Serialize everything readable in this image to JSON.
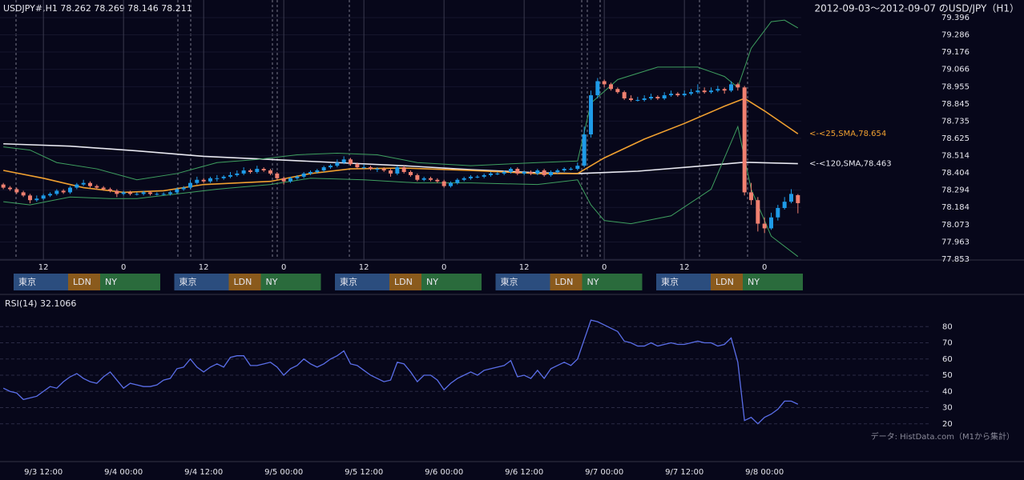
{
  "chart_data": [
    {
      "type": "candlestick",
      "title": "USDJPY#,H1 78.262 78.269 78.146 78.211",
      "subtitle": "2012-09-03～2012-09-07 のUSD/JPY（H1）",
      "up_color": "#1e9be8",
      "down_color": "#f08070",
      "ylim": [
        77.853,
        79.396
      ],
      "yticks": [
        79.396,
        79.286,
        79.176,
        79.066,
        78.955,
        78.845,
        78.735,
        78.625,
        78.514,
        78.404,
        78.294,
        78.184,
        78.073,
        77.963,
        77.853
      ],
      "xlim": [
        -0.5,
        119.5
      ],
      "xticks": [
        {
          "value": 6,
          "label": "12"
        },
        {
          "value": 18,
          "label": "0"
        },
        {
          "value": 30,
          "label": "12"
        },
        {
          "value": 42,
          "label": "0"
        },
        {
          "value": 54,
          "label": "12"
        },
        {
          "value": 66,
          "label": "0"
        },
        {
          "value": 78,
          "label": "12"
        },
        {
          "value": 90,
          "label": "0"
        },
        {
          "value": 102,
          "label": "12"
        },
        {
          "value": 114,
          "label": "0"
        }
      ],
      "sessions": {
        "labels": [
          "東京",
          "LDN",
          "NY"
        ],
        "colors": [
          "#2b4d7e",
          "#8a5a1c",
          "#2a6b3c"
        ]
      },
      "ohlc": [
        [
          78.33,
          78.34,
          78.3,
          78.31
        ],
        [
          78.31,
          78.32,
          78.29,
          78.3
        ],
        [
          78.3,
          78.31,
          78.27,
          78.28
        ],
        [
          78.28,
          78.29,
          78.25,
          78.26
        ],
        [
          78.26,
          78.27,
          78.21,
          78.23
        ],
        [
          78.23,
          78.26,
          78.22,
          78.24
        ],
        [
          78.24,
          78.27,
          78.23,
          78.26
        ],
        [
          78.26,
          78.28,
          78.25,
          78.27
        ],
        [
          78.27,
          78.3,
          78.26,
          78.29
        ],
        [
          78.29,
          78.3,
          78.27,
          78.28
        ],
        [
          78.28,
          78.32,
          78.27,
          78.31
        ],
        [
          78.31,
          78.34,
          78.3,
          78.33
        ],
        [
          78.33,
          78.36,
          78.32,
          78.34
        ],
        [
          78.34,
          78.35,
          78.31,
          78.32
        ],
        [
          78.32,
          78.33,
          78.3,
          78.31
        ],
        [
          78.31,
          78.32,
          78.29,
          78.3
        ],
        [
          78.3,
          78.31,
          78.28,
          78.29
        ],
        [
          78.29,
          78.3,
          78.25,
          78.27
        ],
        [
          78.27,
          78.29,
          78.26,
          78.28
        ],
        [
          78.28,
          78.29,
          78.26,
          78.27
        ],
        [
          78.27,
          78.28,
          78.26,
          78.27
        ],
        [
          78.27,
          78.29,
          78.26,
          78.28
        ],
        [
          78.28,
          78.29,
          78.26,
          78.27
        ],
        [
          78.27,
          78.28,
          78.26,
          78.27
        ],
        [
          78.27,
          78.28,
          78.26,
          78.27
        ],
        [
          78.27,
          78.29,
          78.26,
          78.28
        ],
        [
          78.28,
          78.31,
          78.27,
          78.3
        ],
        [
          78.3,
          78.32,
          78.29,
          78.31
        ],
        [
          78.31,
          78.36,
          78.3,
          78.34
        ],
        [
          78.34,
          78.38,
          78.33,
          78.36
        ],
        [
          78.36,
          78.37,
          78.34,
          78.35
        ],
        [
          78.35,
          78.38,
          78.34,
          78.37
        ],
        [
          78.37,
          78.39,
          78.35,
          78.37
        ],
        [
          78.37,
          78.39,
          78.36,
          78.38
        ],
        [
          78.38,
          78.41,
          78.37,
          78.39
        ],
        [
          78.39,
          78.42,
          78.38,
          78.4
        ],
        [
          78.4,
          78.44,
          78.39,
          78.42
        ],
        [
          78.42,
          78.43,
          78.4,
          78.41
        ],
        [
          78.41,
          78.45,
          78.4,
          78.43
        ],
        [
          78.43,
          78.44,
          78.41,
          78.42
        ],
        [
          78.42,
          78.43,
          78.39,
          78.4
        ],
        [
          78.4,
          78.41,
          78.36,
          78.37
        ],
        [
          78.37,
          78.38,
          78.33,
          78.35
        ],
        [
          78.35,
          78.38,
          78.34,
          78.37
        ],
        [
          78.37,
          78.39,
          78.36,
          78.38
        ],
        [
          78.38,
          78.41,
          78.37,
          78.4
        ],
        [
          78.4,
          78.42,
          78.39,
          78.41
        ],
        [
          78.41,
          78.43,
          78.4,
          78.42
        ],
        [
          78.42,
          78.45,
          78.41,
          78.44
        ],
        [
          78.44,
          78.46,
          78.43,
          78.45
        ],
        [
          78.45,
          78.49,
          78.44,
          78.47
        ],
        [
          78.47,
          78.51,
          78.46,
          78.49
        ],
        [
          78.49,
          78.5,
          78.45,
          78.46
        ],
        [
          78.46,
          78.47,
          78.43,
          78.44
        ],
        [
          78.44,
          78.46,
          78.43,
          78.44
        ],
        [
          78.44,
          78.45,
          78.42,
          78.43
        ],
        [
          78.43,
          78.44,
          78.41,
          78.43
        ],
        [
          78.43,
          78.44,
          78.41,
          78.42
        ],
        [
          78.42,
          78.43,
          78.38,
          78.4
        ],
        [
          78.4,
          78.45,
          78.39,
          78.44
        ],
        [
          78.44,
          78.45,
          78.4,
          78.41
        ],
        [
          78.41,
          78.42,
          78.38,
          78.39
        ],
        [
          78.39,
          78.4,
          78.35,
          78.36
        ],
        [
          78.36,
          78.38,
          78.35,
          78.37
        ],
        [
          78.37,
          78.38,
          78.35,
          78.36
        ],
        [
          78.36,
          78.37,
          78.34,
          78.35
        ],
        [
          78.35,
          78.36,
          78.31,
          78.32
        ],
        [
          78.32,
          78.35,
          78.31,
          78.34
        ],
        [
          78.34,
          78.37,
          78.33,
          78.36
        ],
        [
          78.36,
          78.38,
          78.35,
          78.37
        ],
        [
          78.37,
          78.39,
          78.36,
          78.38
        ],
        [
          78.38,
          78.39,
          78.37,
          78.38
        ],
        [
          78.38,
          78.4,
          78.37,
          78.39
        ],
        [
          78.39,
          78.41,
          78.38,
          78.4
        ],
        [
          78.4,
          78.41,
          78.39,
          78.4
        ],
        [
          78.4,
          78.42,
          78.39,
          78.41
        ],
        [
          78.41,
          78.44,
          78.4,
          78.43
        ],
        [
          78.43,
          78.44,
          78.39,
          78.4
        ],
        [
          78.4,
          78.42,
          78.39,
          78.41
        ],
        [
          78.41,
          78.42,
          78.39,
          78.4
        ],
        [
          78.4,
          78.43,
          78.39,
          78.42
        ],
        [
          78.42,
          78.43,
          78.38,
          78.39
        ],
        [
          78.39,
          78.42,
          78.38,
          78.41
        ],
        [
          78.41,
          78.43,
          78.4,
          78.42
        ],
        [
          78.42,
          78.44,
          78.41,
          78.43
        ],
        [
          78.43,
          78.44,
          78.42,
          78.43
        ],
        [
          78.43,
          78.47,
          78.42,
          78.45
        ],
        [
          78.45,
          78.7,
          78.44,
          78.65
        ],
        [
          78.65,
          78.93,
          78.63,
          78.9
        ],
        [
          78.9,
          79.01,
          78.88,
          78.99
        ],
        [
          78.99,
          79.0,
          78.95,
          78.97
        ],
        [
          78.97,
          78.98,
          78.93,
          78.94
        ],
        [
          78.94,
          78.95,
          78.91,
          78.92
        ],
        [
          78.92,
          78.93,
          78.87,
          78.88
        ],
        [
          78.88,
          78.9,
          78.86,
          78.87
        ],
        [
          78.87,
          78.89,
          78.86,
          78.87
        ],
        [
          78.87,
          78.9,
          78.86,
          78.88
        ],
        [
          78.88,
          78.91,
          78.87,
          78.89
        ],
        [
          78.89,
          78.9,
          78.87,
          78.88
        ],
        [
          78.88,
          78.92,
          78.87,
          78.9
        ],
        [
          78.9,
          78.93,
          78.89,
          78.91
        ],
        [
          78.91,
          78.92,
          78.89,
          78.9
        ],
        [
          78.9,
          78.93,
          78.89,
          78.91
        ],
        [
          78.91,
          78.94,
          78.9,
          78.92
        ],
        [
          78.92,
          78.97,
          78.91,
          78.93
        ],
        [
          78.93,
          78.95,
          78.91,
          78.92
        ],
        [
          78.92,
          78.95,
          78.91,
          78.93
        ],
        [
          78.93,
          78.96,
          78.92,
          78.94
        ],
        [
          78.94,
          78.95,
          78.91,
          78.93
        ],
        [
          78.93,
          78.99,
          78.92,
          78.97
        ],
        [
          78.97,
          78.98,
          78.93,
          78.95
        ],
        [
          78.95,
          78.96,
          78.26,
          78.28
        ],
        [
          78.28,
          78.34,
          78.2,
          78.23
        ],
        [
          78.23,
          78.25,
          78.03,
          78.08
        ],
        [
          78.08,
          78.12,
          78.02,
          78.05
        ],
        [
          78.05,
          78.15,
          78.04,
          78.12
        ],
        [
          78.12,
          78.2,
          78.1,
          78.18
        ],
        [
          78.18,
          78.25,
          78.17,
          78.22
        ],
        [
          78.22,
          78.3,
          78.21,
          78.27
        ],
        [
          78.262,
          78.269,
          78.146,
          78.211
        ]
      ],
      "overlays": [
        {
          "color": "#e8e8f0",
          "label": "<-<120,SMA,78.463",
          "x": [
            0,
            10,
            20,
            30,
            40,
            50,
            60,
            70,
            80,
            86,
            95,
            105,
            111,
            119
          ],
          "values": [
            78.59,
            78.575,
            78.545,
            78.51,
            78.49,
            78.47,
            78.45,
            78.425,
            78.405,
            78.4,
            78.415,
            78.45,
            78.472,
            78.463
          ]
        },
        {
          "color": "#f0a030",
          "label": "<-<25,SMA,78.654",
          "x": [
            0,
            6,
            12,
            18,
            24,
            30,
            40,
            46,
            52,
            60,
            70,
            80,
            86,
            90,
            96,
            102,
            108,
            111,
            114,
            119
          ],
          "values": [
            78.42,
            78.37,
            78.31,
            78.28,
            78.29,
            78.33,
            78.35,
            78.4,
            78.43,
            78.435,
            78.42,
            78.4,
            78.4,
            78.5,
            78.62,
            78.72,
            78.83,
            78.88,
            78.8,
            78.654
          ]
        },
        {
          "color": "#3fa060",
          "x": [
            0,
            4,
            8,
            14,
            20,
            26,
            32,
            38,
            44,
            50,
            56,
            62,
            70,
            80,
            86,
            88,
            92,
            98,
            104,
            108,
            110,
            112,
            115,
            117,
            119
          ],
          "values": [
            78.57,
            78.55,
            78.47,
            78.43,
            78.36,
            78.4,
            78.47,
            78.49,
            78.52,
            78.53,
            78.52,
            78.47,
            78.45,
            78.47,
            78.48,
            78.85,
            79.0,
            79.08,
            79.08,
            79.02,
            78.95,
            79.2,
            79.37,
            79.38,
            79.33
          ]
        },
        {
          "color": "#3fa060",
          "x": [
            0,
            4,
            10,
            16,
            20,
            26,
            32,
            40,
            46,
            54,
            62,
            70,
            80,
            86,
            88,
            90,
            94,
            100,
            106,
            110,
            112,
            115,
            119
          ],
          "values": [
            78.22,
            78.2,
            78.25,
            78.24,
            78.24,
            78.27,
            78.3,
            78.33,
            78.37,
            78.36,
            78.34,
            78.34,
            78.33,
            78.36,
            78.2,
            78.1,
            78.08,
            78.13,
            78.3,
            78.7,
            78.3,
            78.0,
            77.87
          ]
        }
      ]
    },
    {
      "type": "line",
      "title": "RSI(14) 32.1066",
      "note": "データ: HistData.com（M1から集計）",
      "color": "#5a6ee8",
      "ylim": [
        10,
        90
      ],
      "yticks": [
        20,
        30,
        40,
        50,
        60,
        70,
        80
      ],
      "grid": true,
      "xlim": [
        -0.5,
        119.5
      ],
      "xticks": [
        {
          "value": 6,
          "label": "9/3 12:00"
        },
        {
          "value": 18,
          "label": "9/4 00:00"
        },
        {
          "value": 30,
          "label": "9/4 12:00"
        },
        {
          "value": 42,
          "label": "9/5 00:00"
        },
        {
          "value": 54,
          "label": "9/5 12:00"
        },
        {
          "value": 66,
          "label": "9/6 00:00"
        },
        {
          "value": 78,
          "label": "9/6 12:00"
        },
        {
          "value": 90,
          "label": "9/7 00:00"
        },
        {
          "value": 102,
          "label": "9/7 12:00"
        },
        {
          "value": 114,
          "label": "9/8 00:00"
        }
      ],
      "values": [
        42,
        40,
        39,
        35,
        36,
        37,
        40,
        43,
        42,
        46,
        49,
        51,
        48,
        46,
        45,
        49,
        52,
        47,
        42,
        45,
        44,
        43,
        43,
        44,
        47,
        48,
        54,
        55,
        60,
        55,
        52,
        55,
        57,
        55,
        61,
        62,
        62,
        56,
        56,
        57,
        58,
        55,
        50,
        54,
        56,
        60,
        57,
        55,
        57,
        60,
        62,
        65,
        57,
        56,
        53,
        50,
        48,
        46,
        47,
        58,
        57,
        52,
        46,
        50,
        50,
        47,
        41,
        45,
        48,
        50,
        52,
        50,
        53,
        54,
        55,
        56,
        59,
        49,
        50,
        48,
        53,
        48,
        54,
        56,
        58,
        56,
        60,
        72,
        84,
        83,
        81,
        79,
        77,
        71,
        70,
        68,
        68,
        70,
        68,
        69,
        70,
        69,
        69,
        70,
        71,
        70,
        70,
        68,
        69,
        73,
        58,
        22,
        24,
        20,
        24,
        26,
        29,
        34,
        34,
        32.1066
      ]
    }
  ]
}
